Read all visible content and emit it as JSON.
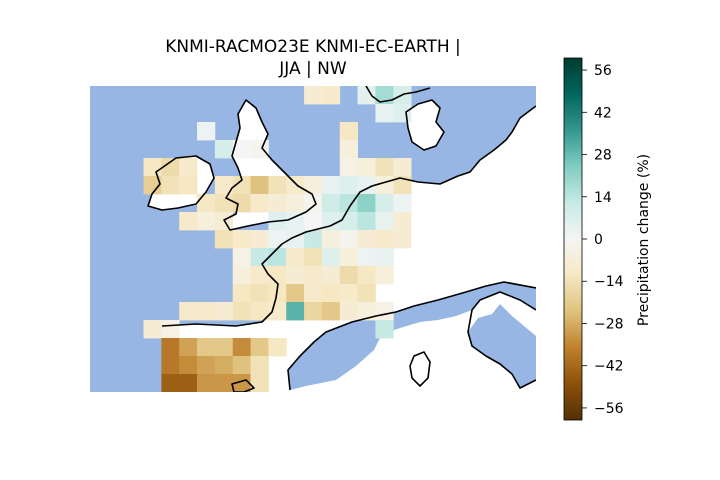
{
  "figure": {
    "title_line1": "KNMI-RACMO23E KNMI-EC-EARTH |",
    "title_line2": "JJA | NW"
  },
  "colorbar": {
    "label": "Precipitation change (%)",
    "ticks": [
      "56",
      "42",
      "28",
      "14",
      "0",
      "−14",
      "−28",
      "−42",
      "−56"
    ],
    "tick_values": [
      56,
      42,
      28,
      14,
      0,
      -14,
      -28,
      -42,
      -56
    ],
    "range": [
      -60,
      60
    ],
    "colormap": "BrBG"
  },
  "map": {
    "ocean_color": "#98b6e3",
    "region": "North-west Europe",
    "grid_note": "precipitation-change cells in %",
    "cells": [
      {
        "c": 12,
        "r": 0,
        "v": -8
      },
      {
        "c": 13,
        "r": 0,
        "v": -10
      },
      {
        "c": 15,
        "r": 0,
        "v": 5
      },
      {
        "c": 16,
        "r": 0,
        "v": 18
      },
      {
        "c": 17,
        "r": 0,
        "v": 8
      },
      {
        "c": 16,
        "r": 1,
        "v": 4
      },
      {
        "c": 17,
        "r": 1,
        "v": 6
      },
      {
        "c": 6,
        "r": 2,
        "v": 2
      },
      {
        "c": 14,
        "r": 2,
        "v": -12
      },
      {
        "c": 7,
        "r": 3,
        "v": 8
      },
      {
        "c": 8,
        "r": 3,
        "v": 0
      },
      {
        "c": 9,
        "r": 3,
        "v": -2
      },
      {
        "c": 14,
        "r": 3,
        "v": -6
      },
      {
        "c": 3,
        "r": 4,
        "v": -12
      },
      {
        "c": 4,
        "r": 4,
        "v": -16
      },
      {
        "c": 5,
        "r": 4,
        "v": -10
      },
      {
        "c": 14,
        "r": 4,
        "v": -4
      },
      {
        "c": 15,
        "r": 4,
        "v": -6
      },
      {
        "c": 16,
        "r": 4,
        "v": -14
      },
      {
        "c": 17,
        "r": 4,
        "v": -8
      },
      {
        "c": 3,
        "r": 5,
        "v": -20
      },
      {
        "c": 4,
        "r": 5,
        "v": -14
      },
      {
        "c": 5,
        "r": 5,
        "v": -12
      },
      {
        "c": 7,
        "r": 5,
        "v": -10
      },
      {
        "c": 8,
        "r": 5,
        "v": -14
      },
      {
        "c": 9,
        "r": 5,
        "v": -24
      },
      {
        "c": 10,
        "r": 5,
        "v": -14
      },
      {
        "c": 11,
        "r": 5,
        "v": -10
      },
      {
        "c": 12,
        "r": 5,
        "v": -6
      },
      {
        "c": 13,
        "r": 5,
        "v": 4
      },
      {
        "c": 14,
        "r": 5,
        "v": 6
      },
      {
        "c": 15,
        "r": 5,
        "v": 4
      },
      {
        "c": 16,
        "r": 5,
        "v": -6
      },
      {
        "c": 17,
        "r": 5,
        "v": -14
      },
      {
        "c": 6,
        "r": 6,
        "v": -12
      },
      {
        "c": 7,
        "r": 6,
        "v": -14
      },
      {
        "c": 8,
        "r": 6,
        "v": -16
      },
      {
        "c": 9,
        "r": 6,
        "v": -10
      },
      {
        "c": 10,
        "r": 6,
        "v": -8
      },
      {
        "c": 11,
        "r": 6,
        "v": -6
      },
      {
        "c": 12,
        "r": 6,
        "v": -2
      },
      {
        "c": 13,
        "r": 6,
        "v": 10
      },
      {
        "c": 14,
        "r": 6,
        "v": 14
      },
      {
        "c": 15,
        "r": 6,
        "v": 22
      },
      {
        "c": 16,
        "r": 6,
        "v": 8
      },
      {
        "c": 17,
        "r": 6,
        "v": 2
      },
      {
        "c": 5,
        "r": 7,
        "v": -10
      },
      {
        "c": 6,
        "r": 7,
        "v": -6
      },
      {
        "c": 7,
        "r": 7,
        "v": -8
      },
      {
        "c": 10,
        "r": 7,
        "v": 6
      },
      {
        "c": 11,
        "r": 7,
        "v": 4
      },
      {
        "c": 12,
        "r": 7,
        "v": 0
      },
      {
        "c": 13,
        "r": 7,
        "v": 6
      },
      {
        "c": 14,
        "r": 7,
        "v": 8
      },
      {
        "c": 15,
        "r": 7,
        "v": 14
      },
      {
        "c": 16,
        "r": 7,
        "v": 4
      },
      {
        "c": 17,
        "r": 7,
        "v": -8
      },
      {
        "c": 7,
        "r": 8,
        "v": -14
      },
      {
        "c": 8,
        "r": 8,
        "v": -10
      },
      {
        "c": 9,
        "r": 8,
        "v": -8
      },
      {
        "c": 10,
        "r": 8,
        "v": 2
      },
      {
        "c": 11,
        "r": 8,
        "v": 4
      },
      {
        "c": 12,
        "r": 8,
        "v": 12
      },
      {
        "c": 13,
        "r": 8,
        "v": -6
      },
      {
        "c": 14,
        "r": 8,
        "v": -2
      },
      {
        "c": 15,
        "r": 8,
        "v": -8
      },
      {
        "c": 16,
        "r": 8,
        "v": -10
      },
      {
        "c": 17,
        "r": 8,
        "v": -8
      },
      {
        "c": 8,
        "r": 9,
        "v": -4
      },
      {
        "c": 9,
        "r": 9,
        "v": 12
      },
      {
        "c": 10,
        "r": 9,
        "v": 14
      },
      {
        "c": 11,
        "r": 9,
        "v": -10
      },
      {
        "c": 12,
        "r": 9,
        "v": -14
      },
      {
        "c": 13,
        "r": 9,
        "v": 6
      },
      {
        "c": 14,
        "r": 9,
        "v": -6
      },
      {
        "c": 15,
        "r": 9,
        "v": 2
      },
      {
        "c": 16,
        "r": 9,
        "v": 4
      },
      {
        "c": 8,
        "r": 10,
        "v": -6
      },
      {
        "c": 9,
        "r": 10,
        "v": -10
      },
      {
        "c": 10,
        "r": 10,
        "v": -12
      },
      {
        "c": 11,
        "r": 10,
        "v": -8
      },
      {
        "c": 12,
        "r": 10,
        "v": -10
      },
      {
        "c": 13,
        "r": 10,
        "v": -8
      },
      {
        "c": 14,
        "r": 10,
        "v": -16
      },
      {
        "c": 15,
        "r": 10,
        "v": -12
      },
      {
        "c": 16,
        "r": 10,
        "v": -6
      },
      {
        "c": 8,
        "r": 11,
        "v": -12
      },
      {
        "c": 9,
        "r": 11,
        "v": -14
      },
      {
        "c": 10,
        "r": 11,
        "v": -12
      },
      {
        "c": 11,
        "r": 11,
        "v": -22
      },
      {
        "c": 12,
        "r": 11,
        "v": -10
      },
      {
        "c": 13,
        "r": 11,
        "v": -12
      },
      {
        "c": 14,
        "r": 11,
        "v": -10
      },
      {
        "c": 15,
        "r": 11,
        "v": -14
      },
      {
        "c": 5,
        "r": 12,
        "v": -10
      },
      {
        "c": 6,
        "r": 12,
        "v": -10
      },
      {
        "c": 7,
        "r": 12,
        "v": -8
      },
      {
        "c": 8,
        "r": 12,
        "v": -14
      },
      {
        "c": 9,
        "r": 12,
        "v": -12
      },
      {
        "c": 10,
        "r": 12,
        "v": -10
      },
      {
        "c": 11,
        "r": 12,
        "v": 30
      },
      {
        "c": 12,
        "r": 12,
        "v": -18
      },
      {
        "c": 13,
        "r": 12,
        "v": -22
      },
      {
        "c": 14,
        "r": 12,
        "v": -8
      },
      {
        "c": 15,
        "r": 12,
        "v": -6
      },
      {
        "c": 16,
        "r": 12,
        "v": -4
      },
      {
        "c": 3,
        "r": 13,
        "v": -8
      },
      {
        "c": 4,
        "r": 13,
        "v": -4
      },
      {
        "c": 16,
        "r": 13,
        "v": 12
      },
      {
        "c": 4,
        "r": 14,
        "v": -38
      },
      {
        "c": 5,
        "r": 14,
        "v": -30
      },
      {
        "c": 6,
        "r": 14,
        "v": -22
      },
      {
        "c": 7,
        "r": 14,
        "v": -22
      },
      {
        "c": 8,
        "r": 14,
        "v": -34
      },
      {
        "c": 9,
        "r": 14,
        "v": -22
      },
      {
        "c": 10,
        "r": 14,
        "v": -12
      },
      {
        "c": 4,
        "r": 15,
        "v": -38
      },
      {
        "c": 5,
        "r": 15,
        "v": -34
      },
      {
        "c": 6,
        "r": 15,
        "v": -30
      },
      {
        "c": 7,
        "r": 15,
        "v": -28
      },
      {
        "c": 8,
        "r": 15,
        "v": -24
      },
      {
        "c": 9,
        "r": 15,
        "v": -14
      },
      {
        "c": 4,
        "r": 16,
        "v": -44
      },
      {
        "c": 5,
        "r": 16,
        "v": -44
      },
      {
        "c": 6,
        "r": 16,
        "v": -32
      },
      {
        "c": 7,
        "r": 16,
        "v": -32
      },
      {
        "c": 8,
        "r": 16,
        "v": -32
      },
      {
        "c": 9,
        "r": 16,
        "v": -14
      }
    ]
  }
}
